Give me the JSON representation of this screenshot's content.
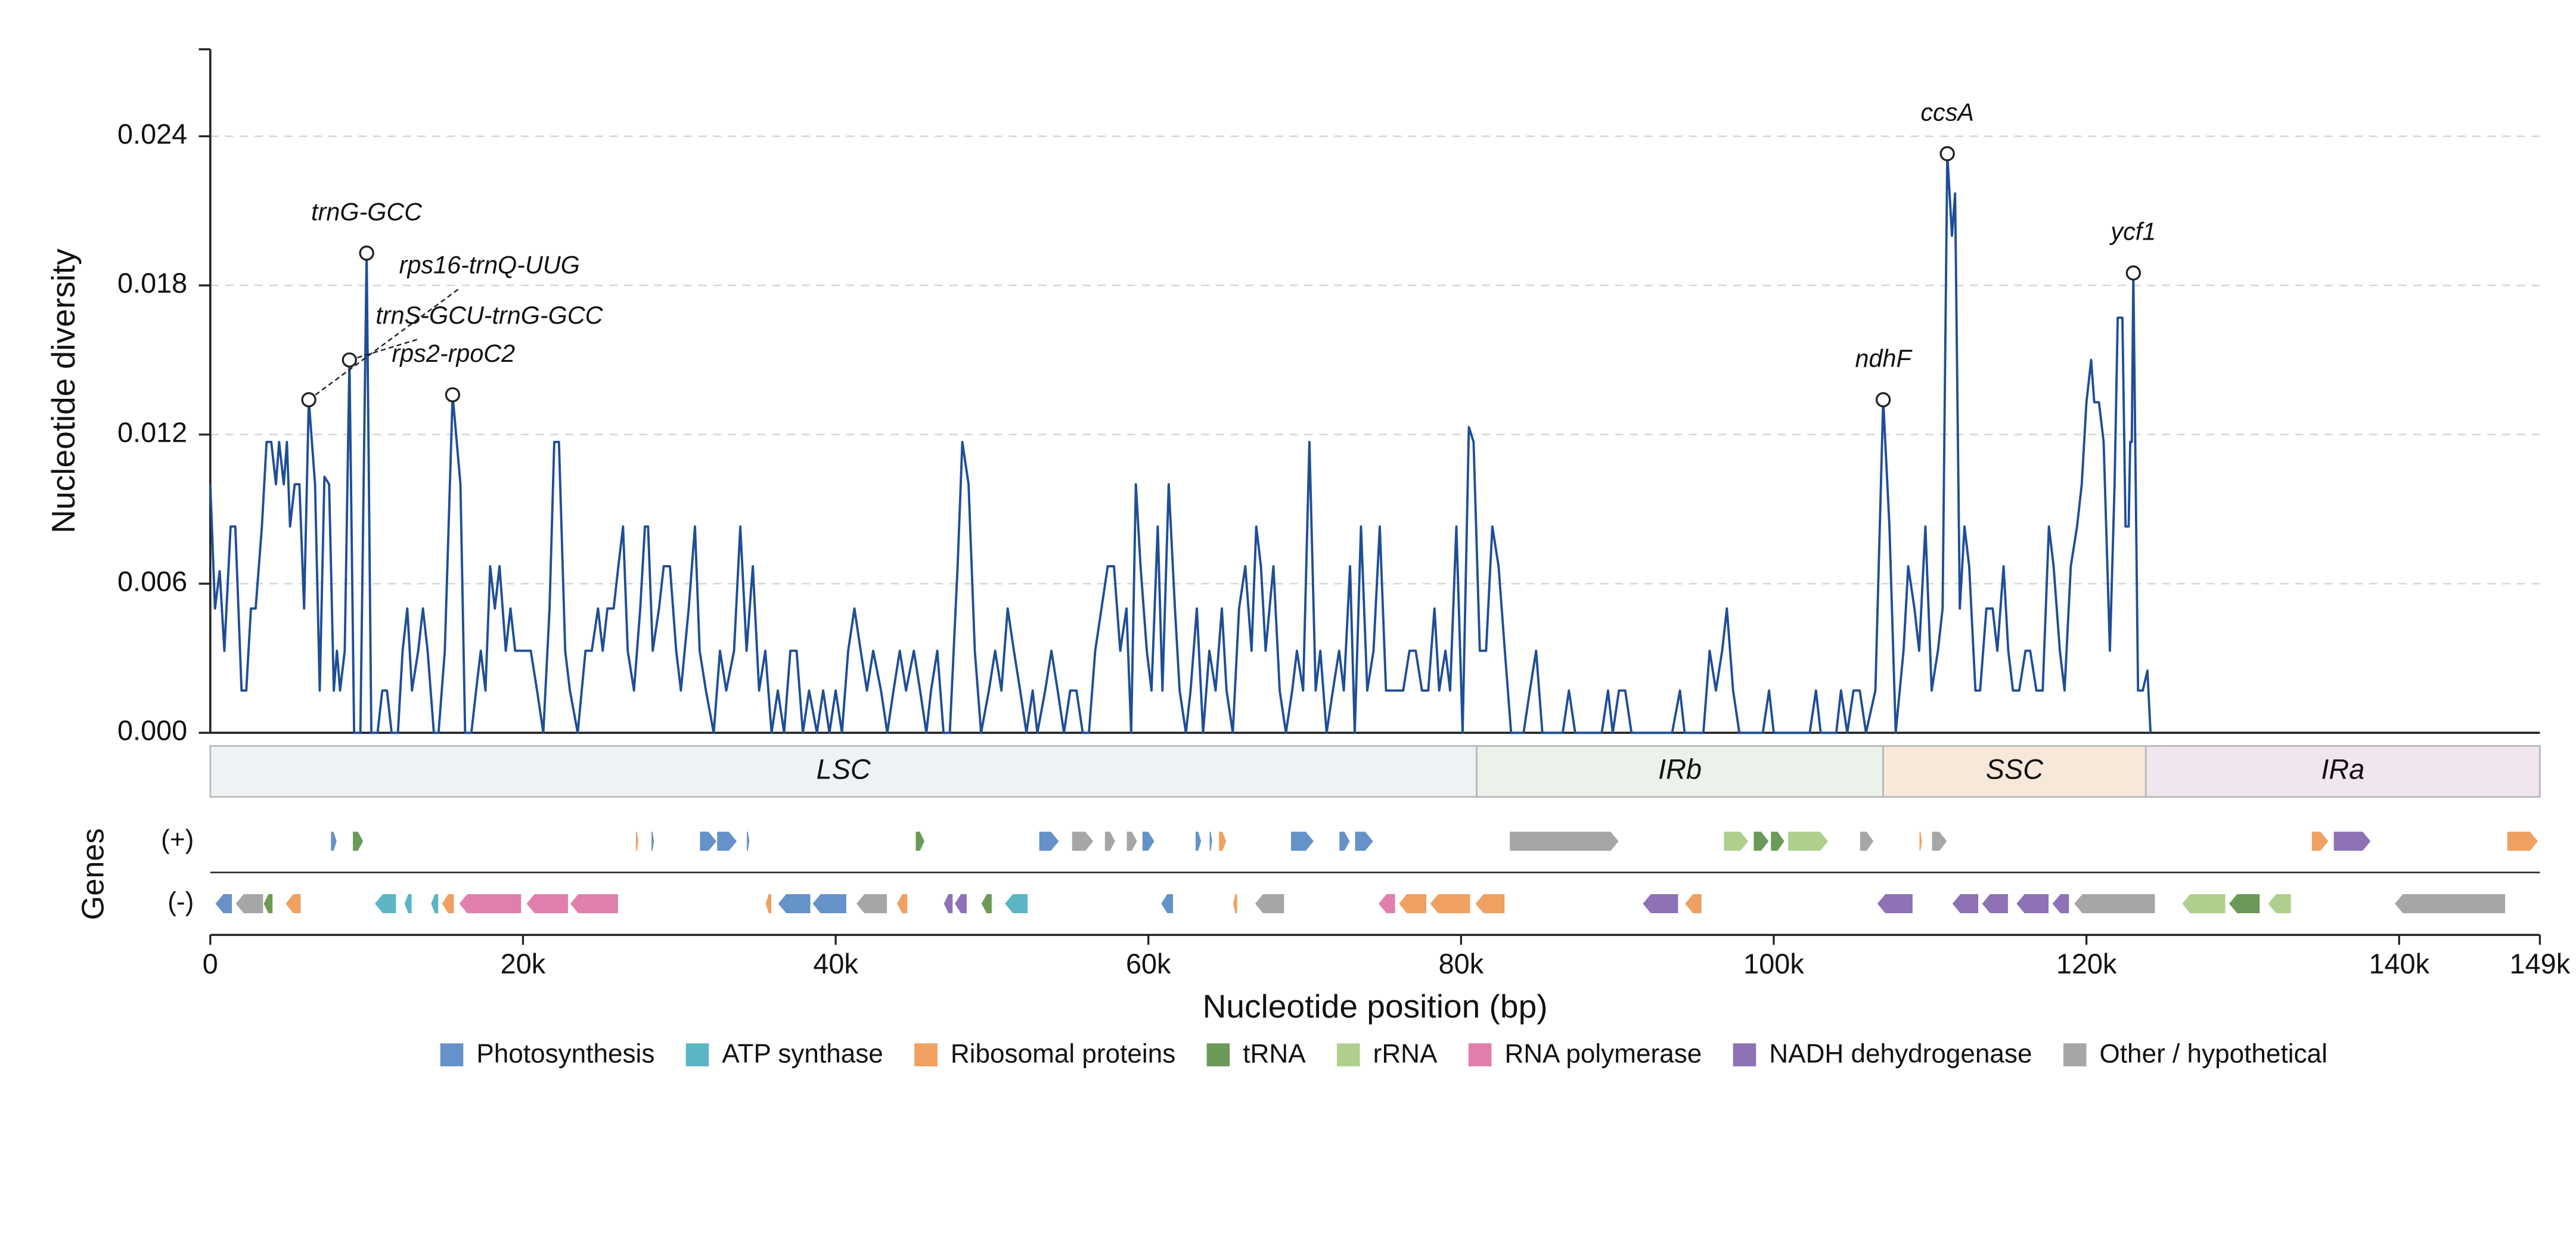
{
  "chart_data": {
    "type": "line",
    "ylabel": "Nucleotide diversity",
    "xlabel": "Nucleotide position (bp)",
    "color": "#1f4e96",
    "grid": true,
    "xlim": [
      0,
      149000
    ],
    "ylim": [
      0,
      0.0275
    ],
    "yticks": [
      {
        "value": 0,
        "label": "0.000"
      },
      {
        "value": 0.006,
        "label": "0.006"
      },
      {
        "value": 0.012,
        "label": "0.012"
      },
      {
        "value": 0.018,
        "label": "0.018"
      },
      {
        "value": 0.024,
        "label": "0.024"
      }
    ],
    "xticks": [
      0,
      {
        "value": 20000,
        "label": "20k"
      },
      {
        "value": 40000,
        "label": "40k"
      },
      {
        "value": 60000,
        "label": "60k"
      },
      {
        "value": 80000,
        "label": "80k"
      },
      {
        "value": 100000,
        "label": "100k"
      },
      {
        "value": 120000,
        "label": "120k"
      },
      {
        "value": 140000,
        "label": "140k"
      },
      {
        "value": 149000,
        "label": "149k"
      }
    ],
    "x": [
      0,
      300,
      600,
      900,
      1300,
      1600,
      2000,
      2300,
      2600,
      2900,
      3300,
      3600,
      3900,
      4200,
      4400,
      4700,
      4900,
      5100,
      5400,
      5700,
      6000,
      6300,
      6700,
      7000,
      7300,
      7600,
      7900,
      8100,
      8300,
      8600,
      8900,
      9200,
      9600,
      10000,
      10300,
      10700,
      11000,
      11300,
      11600,
      12000,
      12300,
      12600,
      12900,
      13300,
      13600,
      13900,
      14300,
      14600,
      15000,
      15500,
      16000,
      16300,
      16700,
      17000,
      17300,
      17600,
      17900,
      18200,
      18500,
      18900,
      19200,
      19500,
      20000,
      20500,
      20900,
      21300,
      21700,
      22000,
      22300,
      22700,
      23000,
      23500,
      24000,
      24400,
      24800,
      25100,
      25400,
      25800,
      26100,
      26400,
      26700,
      27100,
      27500,
      27800,
      28000,
      28300,
      28700,
      29000,
      29400,
      29800,
      30100,
      30600,
      31000,
      31300,
      31700,
      32200,
      32600,
      33000,
      33500,
      33900,
      34300,
      34700,
      35100,
      35500,
      35900,
      36300,
      36700,
      37100,
      37500,
      37900,
      38300,
      38800,
      39200,
      39600,
      40000,
      40400,
      40800,
      41200,
      41600,
      42000,
      42400,
      42900,
      43300,
      43700,
      44100,
      44500,
      45000,
      45400,
      45800,
      46100,
      46500,
      46900,
      47300,
      47800,
      48100,
      48500,
      48900,
      49300,
      49800,
      50200,
      50600,
      51000,
      51400,
      51800,
      52200,
      52600,
      52900,
      53400,
      53800,
      54200,
      54600,
      55000,
      55400,
      55800,
      56200,
      56600,
      57000,
      57400,
      57800,
      58200,
      58600,
      58900,
      59200,
      59500,
      59900,
      60200,
      60600,
      60900,
      61300,
      61700,
      62000,
      62400,
      62700,
      63100,
      63500,
      63900,
      64300,
      64700,
      65000,
      65400,
      65800,
      66200,
      66600,
      66900,
      67200,
      67500,
      68000,
      68400,
      68800,
      69200,
      69500,
      69900,
      70300,
      70700,
      71000,
      71400,
      71800,
      72200,
      72500,
      72900,
      73200,
      73600,
      74000,
      74400,
      74800,
      75200,
      75500,
      75900,
      76300,
      76700,
      77100,
      77500,
      77900,
      78300,
      78600,
      79000,
      79300,
      79700,
      80100,
      80500,
      80800,
      81200,
      81600,
      82000,
      82400,
      82800,
      83200,
      84000,
      84400,
      84800,
      85200,
      86500,
      86900,
      87300,
      89000,
      89400,
      89700,
      90100,
      90500,
      90900,
      93500,
      94000,
      94300,
      95500,
      95900,
      96300,
      96700,
      97000,
      97400,
      97800,
      99300,
      99700,
      100000,
      102300,
      102700,
      103000,
      104000,
      104300,
      104700,
      105100,
      105500,
      105900,
      106500,
      107000,
      107400,
      107800,
      108300,
      108600,
      109000,
      109300,
      109700,
      110100,
      110500,
      110800,
      111100,
      111400,
      111600,
      111900,
      112200,
      112500,
      112900,
      113200,
      113600,
      114000,
      114300,
      114700,
      115000,
      115300,
      115700,
      116100,
      116400,
      116800,
      117200,
      117600,
      117900,
      118300,
      118600,
      119000,
      119400,
      119700,
      120000,
      120300,
      120500,
      120800,
      121100,
      121500,
      121800,
      122000,
      122300,
      122500,
      122700,
      122800,
      122900,
      123000,
      123300,
      123600,
      123900,
      124100
    ],
    "values": [
      0.01,
      0.005,
      0.0065,
      0.0033,
      0.0083,
      0.0083,
      0.0017,
      0.0017,
      0.005,
      0.005,
      0.0083,
      0.0117,
      0.0117,
      0.01,
      0.0117,
      0.01,
      0.0117,
      0.0083,
      0.01,
      0.01,
      0.005,
      0.0134,
      0.01,
      0.0017,
      0.0103,
      0.01,
      0.0017,
      0.0033,
      0.0017,
      0.0033,
      0.015,
      0,
      0,
      0.0193,
      0,
      0,
      0.0017,
      0.0017,
      0,
      0,
      0.0033,
      0.005,
      0.0017,
      0.0033,
      0.005,
      0.0033,
      0,
      0,
      0.0033,
      0.0136,
      0.01,
      0,
      0,
      0.0017,
      0.0033,
      0.0017,
      0.0067,
      0.005,
      0.0067,
      0.0033,
      0.005,
      0.0033,
      0.0033,
      0.0033,
      0.0017,
      0,
      0.005,
      0.0117,
      0.0117,
      0.0033,
      0.0017,
      0,
      0.0033,
      0.0033,
      0.005,
      0.0033,
      0.005,
      0.005,
      0.0067,
      0.0083,
      0.0033,
      0.0017,
      0.005,
      0.0083,
      0.0083,
      0.0033,
      0.005,
      0.0067,
      0.0067,
      0.0033,
      0.0017,
      0.005,
      0.0083,
      0.0033,
      0.0017,
      0,
      0.0033,
      0.0017,
      0.0033,
      0.0083,
      0.0033,
      0.0067,
      0.0017,
      0.0033,
      0,
      0.0017,
      0,
      0.0033,
      0.0033,
      0,
      0.0017,
      0,
      0.0017,
      0,
      0.0017,
      0,
      0.0033,
      0.005,
      0.0033,
      0.0017,
      0.0033,
      0.0017,
      0,
      0.0017,
      0.0033,
      0.0017,
      0.0033,
      0.0017,
      0,
      0.0017,
      0.0033,
      0,
      0,
      0.0067,
      0.0117,
      0.01,
      0.0033,
      0,
      0.0017,
      0.0033,
      0.0017,
      0.005,
      0.0033,
      0.0017,
      0,
      0.0017,
      0,
      0.0017,
      0.0033,
      0.0017,
      0,
      0.0017,
      0.0017,
      0,
      0,
      0.0033,
      0.005,
      0.0067,
      0.0067,
      0.0033,
      0.005,
      0,
      0.01,
      0.0067,
      0.0033,
      0.0017,
      0.0083,
      0.0017,
      0.01,
      0.005,
      0.0017,
      0,
      0.0017,
      0.005,
      0,
      0.0033,
      0.0017,
      0.005,
      0.0017,
      0,
      0.005,
      0.0067,
      0.0033,
      0.0083,
      0.0067,
      0.0033,
      0.0067,
      0.0017,
      0,
      0.0017,
      0.0033,
      0.0017,
      0.0117,
      0.0017,
      0.0033,
      0,
      0.0017,
      0.0033,
      0.0017,
      0.0067,
      0,
      0.0083,
      0.0017,
      0.0033,
      0.0083,
      0.0017,
      0.0017,
      0.0017,
      0.0017,
      0.0033,
      0.0033,
      0.0017,
      0.0017,
      0.005,
      0.0017,
      0.0033,
      0.0017,
      0.0083,
      0,
      0.0123,
      0.0117,
      0.0033,
      0.0033,
      0.0083,
      0.0067,
      0.0033,
      0,
      0,
      0.0017,
      0.0033,
      0,
      0,
      0.0017,
      0,
      0,
      0.0017,
      0,
      0.0017,
      0.0017,
      0,
      0,
      0.0017,
      0,
      0,
      0.0033,
      0.0017,
      0.0033,
      0.005,
      0.0017,
      0,
      0,
      0.0017,
      0,
      0,
      0.0017,
      0,
      0,
      0.0017,
      0,
      0.0017,
      0.0017,
      0,
      0.0017,
      0.0134,
      0.0083,
      0,
      0.0033,
      0.0067,
      0.005,
      0.0033,
      0.0083,
      0.0017,
      0.0033,
      0.005,
      0.0233,
      0.02,
      0.0217,
      0.005,
      0.0083,
      0.0067,
      0.0017,
      0.0017,
      0.005,
      0.005,
      0.0033,
      0.0067,
      0.0033,
      0.0017,
      0.0017,
      0.0033,
      0.0033,
      0.0017,
      0.0017,
      0.0083,
      0.0067,
      0.0033,
      0.0017,
      0.0067,
      0.0083,
      0.01,
      0.0133,
      0.015,
      0.0133,
      0.0133,
      0.0117,
      0.0033,
      0.01,
      0.0167,
      0.0167,
      0.0083,
      0.0083,
      0.0117,
      0.0117,
      0.0185,
      0.0017,
      0.0017,
      0.0025,
      0
    ],
    "annotations": [
      {
        "text": "trnG-GCC",
        "x": 10000,
        "y": 0.0193
      },
      {
        "text": "rps16-trnQ-UUG",
        "x": 6300,
        "y": 0.0134
      },
      {
        "text": "trnS-GCU-trnG-GCC",
        "x": 8900,
        "y": 0.015
      },
      {
        "text": "rps2-rpoC2",
        "x": 15500,
        "y": 0.0136
      },
      {
        "text": "ndhF",
        "x": 107000,
        "y": 0.0134
      },
      {
        "text": "ccsA",
        "x": 111100,
        "y": 0.0233
      },
      {
        "text": "ycf1",
        "x": 123000,
        "y": 0.0185
      }
    ],
    "regions": [
      {
        "name": "LSC",
        "start": 0,
        "end": 81000,
        "color": "#eef2f5"
      },
      {
        "name": "IRb",
        "start": 81000,
        "end": 107000,
        "color": "#ecf1e9"
      },
      {
        "name": "SSC",
        "start": 107000,
        "end": 123800,
        "color": "#f8e8da"
      },
      {
        "name": "IRa",
        "start": 123800,
        "end": 149000,
        "color": "#f1e6f0"
      }
    ],
    "gene_label": "Genes",
    "tracks": [
      {
        "label": "(+)",
        "genes": [
          {
            "start": 7700,
            "end": 8100,
            "group": "Photosynthesis"
          },
          {
            "start": 9100,
            "end": 9800,
            "group": "tRNA"
          },
          {
            "start": 27200,
            "end": 27400,
            "group": "Ribosomal proteins"
          },
          {
            "start": 28200,
            "end": 28400,
            "group": "Photosynthesis"
          },
          {
            "start": 31300,
            "end": 32400,
            "group": "Photosynthesis"
          },
          {
            "start": 32400,
            "end": 33700,
            "group": "Photosynthesis"
          },
          {
            "start": 34300,
            "end": 34500,
            "group": "Photosynthesis"
          },
          {
            "start": 45100,
            "end": 45700,
            "group": "tRNA"
          },
          {
            "start": 53000,
            "end": 54300,
            "group": "Photosynthesis"
          },
          {
            "start": 55100,
            "end": 56500,
            "group": "Other / hypothetical"
          },
          {
            "start": 57200,
            "end": 57900,
            "group": "Other / hypothetical"
          },
          {
            "start": 58600,
            "end": 59300,
            "group": "Other / hypothetical"
          },
          {
            "start": 59600,
            "end": 60400,
            "group": "Photosynthesis"
          },
          {
            "start": 63000,
            "end": 63400,
            "group": "Photosynthesis"
          },
          {
            "start": 63900,
            "end": 64100,
            "group": "Photosynthesis"
          },
          {
            "start": 64500,
            "end": 65000,
            "group": "Ribosomal proteins"
          },
          {
            "start": 69100,
            "end": 70600,
            "group": "Photosynthesis"
          },
          {
            "start": 72200,
            "end": 72900,
            "group": "Photosynthesis"
          },
          {
            "start": 73200,
            "end": 74400,
            "group": "Photosynthesis"
          },
          {
            "start": 83100,
            "end": 90100,
            "group": "Other / hypothetical"
          },
          {
            "start": 96800,
            "end": 98400,
            "group": "rRNA"
          },
          {
            "start": 98700,
            "end": 99700,
            "group": "tRNA"
          },
          {
            "start": 99800,
            "end": 100700,
            "group": "tRNA"
          },
          {
            "start": 100900,
            "end": 103500,
            "group": "rRNA"
          },
          {
            "start": 105500,
            "end": 106400,
            "group": "Other / hypothetical"
          },
          {
            "start": 109300,
            "end": 109500,
            "group": "Ribosomal proteins"
          },
          {
            "start": 110100,
            "end": 111100,
            "group": "Other / hypothetical"
          },
          {
            "start": 134400,
            "end": 135500,
            "group": "Ribosomal proteins"
          },
          {
            "start": 135800,
            "end": 138200,
            "group": "NADH dehydrogenase"
          },
          {
            "start": 146900,
            "end": 148900,
            "group": "Ribosomal proteins"
          }
        ]
      },
      {
        "label": "(-)",
        "genes": [
          {
            "start": 300,
            "end": 1400,
            "group": "Photosynthesis"
          },
          {
            "start": 1600,
            "end": 3400,
            "group": "Other / hypothetical"
          },
          {
            "start": 3400,
            "end": 4000,
            "group": "tRNA"
          },
          {
            "start": 4800,
            "end": 5800,
            "group": "Ribosomal proteins"
          },
          {
            "start": 10500,
            "end": 11900,
            "group": "ATP synthase"
          },
          {
            "start": 12400,
            "end": 12900,
            "group": "ATP synthase"
          },
          {
            "start": 14100,
            "end": 14600,
            "group": "ATP synthase"
          },
          {
            "start": 14800,
            "end": 15600,
            "group": "Ribosomal proteins"
          },
          {
            "start": 15900,
            "end": 19900,
            "group": "RNA polymerase"
          },
          {
            "start": 20200,
            "end": 22900,
            "group": "RNA polymerase"
          },
          {
            "start": 23000,
            "end": 26100,
            "group": "RNA polymerase"
          },
          {
            "start": 35500,
            "end": 35900,
            "group": "Ribosomal proteins"
          },
          {
            "start": 36300,
            "end": 38400,
            "group": "Photosynthesis"
          },
          {
            "start": 38500,
            "end": 40700,
            "group": "Photosynthesis"
          },
          {
            "start": 41300,
            "end": 43300,
            "group": "Other / hypothetical"
          },
          {
            "start": 43900,
            "end": 44600,
            "group": "Ribosomal proteins"
          },
          {
            "start": 46900,
            "end": 47500,
            "group": "NADH dehydrogenase"
          },
          {
            "start": 47600,
            "end": 48400,
            "group": "NADH dehydrogenase"
          },
          {
            "start": 49300,
            "end": 50000,
            "group": "tRNA"
          },
          {
            "start": 50800,
            "end": 52300,
            "group": "ATP synthase"
          },
          {
            "start": 60800,
            "end": 61600,
            "group": "Photosynthesis"
          },
          {
            "start": 65400,
            "end": 65700,
            "group": "Ribosomal proteins"
          },
          {
            "start": 66800,
            "end": 68700,
            "group": "Other / hypothetical"
          },
          {
            "start": 74700,
            "end": 75800,
            "group": "RNA polymerase"
          },
          {
            "start": 76000,
            "end": 77800,
            "group": "Ribosomal proteins"
          },
          {
            "start": 78000,
            "end": 80600,
            "group": "Ribosomal proteins"
          },
          {
            "start": 80900,
            "end": 82800,
            "group": "Ribosomal proteins"
          },
          {
            "start": 91600,
            "end": 93900,
            "group": "NADH dehydrogenase"
          },
          {
            "start": 94300,
            "end": 95400,
            "group": "Ribosomal proteins"
          },
          {
            "start": 106600,
            "end": 108900,
            "group": "NADH dehydrogenase"
          },
          {
            "start": 111400,
            "end": 113100,
            "group": "NADH dehydrogenase"
          },
          {
            "start": 113300,
            "end": 115000,
            "group": "NADH dehydrogenase"
          },
          {
            "start": 115500,
            "end": 117600,
            "group": "NADH dehydrogenase"
          },
          {
            "start": 117800,
            "end": 118900,
            "group": "NADH dehydrogenase"
          },
          {
            "start": 119200,
            "end": 124400,
            "group": "Other / hypothetical"
          },
          {
            "start": 126100,
            "end": 128900,
            "group": "rRNA"
          },
          {
            "start": 129100,
            "end": 131100,
            "group": "tRNA"
          },
          {
            "start": 131600,
            "end": 133100,
            "group": "rRNA"
          },
          {
            "start": 139700,
            "end": 146800,
            "group": "Other / hypothetical"
          }
        ]
      }
    ],
    "legend": [
      {
        "name": "Photosynthesis",
        "color": "#6592c8"
      },
      {
        "name": "ATP synthase",
        "color": "#5bb5c5"
      },
      {
        "name": "Ribosomal proteins",
        "color": "#f0a061"
      },
      {
        "name": "tRNA",
        "color": "#6b9a58"
      },
      {
        "name": "rRNA",
        "color": "#afcf8e"
      },
      {
        "name": "RNA polymerase",
        "color": "#e07fad"
      },
      {
        "name": "NADH dehydrogenase",
        "color": "#8e72b5"
      },
      {
        "name": "Other / hypothetical",
        "color": "#a6a6a6"
      }
    ]
  }
}
